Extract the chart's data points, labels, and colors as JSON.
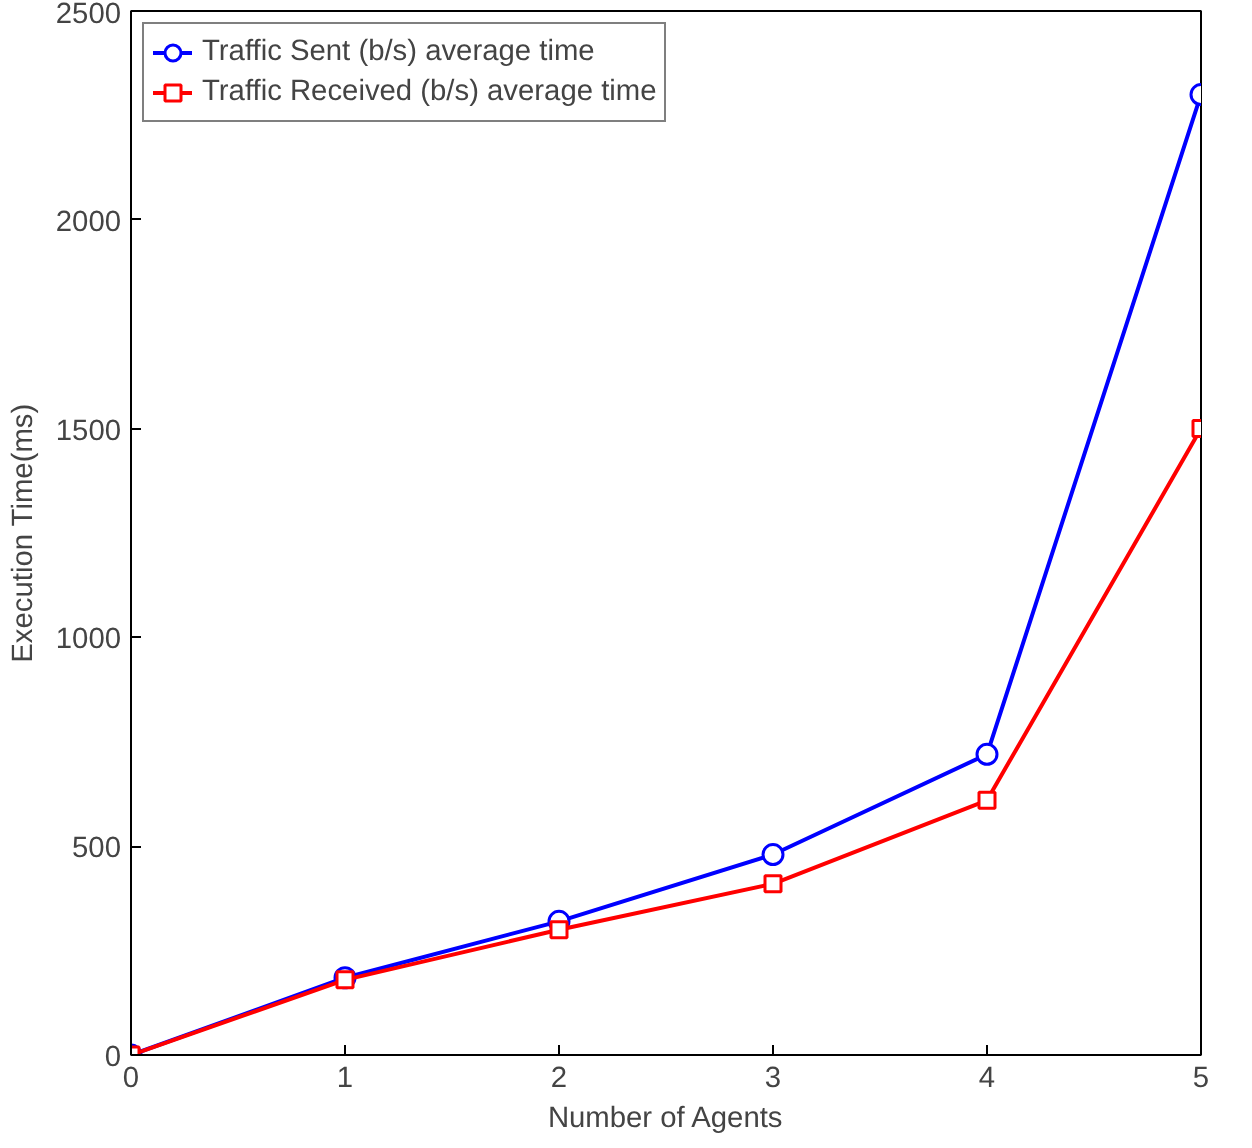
{
  "chart_data": {
    "type": "line",
    "xlabel": "Number of Agents",
    "ylabel": "Execution Time(ms)",
    "x": [
      0,
      1,
      2,
      3,
      4,
      5
    ],
    "series": [
      {
        "name": "Traffic Sent (b/s) average time",
        "color": "#0000ff",
        "marker": "circle",
        "values": [
          0,
          185,
          320,
          480,
          720,
          2300
        ]
      },
      {
        "name": "Traffic Received (b/s) average time",
        "color": "#ff0000",
        "marker": "square",
        "values": [
          0,
          180,
          300,
          410,
          610,
          1500
        ]
      }
    ],
    "xlim": [
      0,
      5
    ],
    "ylim": [
      0,
      2500
    ],
    "xticks": [
      0,
      1,
      2,
      3,
      4,
      5
    ],
    "yticks": [
      0,
      500,
      1000,
      1500,
      2000,
      2500
    ],
    "grid": false,
    "legend": "top left",
    "line_style": "solid"
  }
}
